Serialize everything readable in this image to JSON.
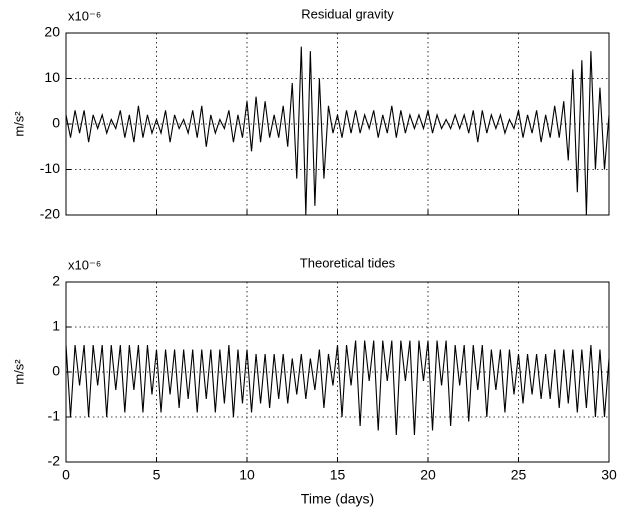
{
  "chart_data": [
    {
      "type": "line",
      "title": "Residual gravity",
      "multiplier": "x10⁻⁶",
      "y_label": "m/s²",
      "xlim": [
        0,
        30
      ],
      "xticks": [
        0,
        5,
        10,
        15,
        20,
        25,
        30
      ],
      "show_xtick_labels": false,
      "ylim": [
        -20,
        20
      ],
      "yticks": [
        -20,
        -10,
        0,
        10,
        20
      ],
      "grid": true,
      "color": "#000000",
      "x": [
        0,
        0.25,
        0.5,
        0.75,
        1,
        1.25,
        1.5,
        1.75,
        2,
        2.25,
        2.5,
        2.75,
        3,
        3.25,
        3.5,
        3.75,
        4,
        4.25,
        4.5,
        4.75,
        5,
        5.25,
        5.5,
        5.75,
        6,
        6.25,
        6.5,
        6.75,
        7,
        7.25,
        7.5,
        7.75,
        8,
        8.25,
        8.5,
        8.75,
        9,
        9.25,
        9.5,
        9.75,
        10,
        10.25,
        10.5,
        10.75,
        11,
        11.25,
        11.5,
        11.75,
        12,
        12.25,
        12.5,
        12.75,
        13,
        13.25,
        13.5,
        13.75,
        14,
        14.25,
        14.5,
        14.75,
        15,
        15.25,
        15.5,
        15.75,
        16,
        16.25,
        16.5,
        16.75,
        17,
        17.25,
        17.5,
        17.75,
        18,
        18.25,
        18.5,
        18.75,
        19,
        19.25,
        19.5,
        19.75,
        20,
        20.25,
        20.5,
        20.75,
        21,
        21.25,
        21.5,
        21.75,
        22,
        22.25,
        22.5,
        22.75,
        23,
        23.25,
        23.5,
        23.75,
        24,
        24.25,
        24.5,
        24.75,
        25,
        25.25,
        25.5,
        25.75,
        26,
        26.25,
        26.5,
        26.75,
        27,
        27.25,
        27.5,
        27.75,
        28,
        28.25,
        28.5,
        28.75,
        29,
        29.25,
        29.5,
        29.75,
        30
      ],
      "values": [
        2,
        -3,
        3,
        -2,
        3,
        -4,
        2,
        -1,
        2,
        -2,
        1,
        -1,
        3,
        -3,
        2,
        -4,
        4,
        -3,
        2,
        -2,
        1,
        -2,
        3,
        -4,
        2,
        -1,
        1,
        -2,
        3,
        -3,
        4,
        -5,
        2,
        -2,
        1,
        -1,
        3,
        -4,
        2,
        -3,
        5,
        -6,
        6,
        -4,
        5,
        -3,
        2,
        -3,
        4,
        -5,
        9,
        -12,
        17,
        -20,
        16,
        -18,
        10,
        -12,
        4,
        -2,
        2,
        -3,
        3,
        -2,
        3,
        -2,
        2,
        -1,
        3,
        -3,
        2,
        -2,
        4,
        -3,
        3,
        -2,
        2,
        -1,
        2,
        -1,
        3,
        -2,
        2,
        -1,
        1,
        -1,
        2,
        -1,
        2,
        -2,
        3,
        -4,
        3,
        -2,
        2,
        -1,
        2,
        -2,
        1,
        -1,
        3,
        -3,
        2,
        -2,
        3,
        -4,
        2,
        -3,
        4,
        -3,
        5,
        -8,
        12,
        -15,
        14,
        -20,
        16,
        -10,
        8,
        -10,
        2
      ]
    },
    {
      "type": "line",
      "title": "Theoretical tides",
      "multiplier": "x10⁻⁶",
      "y_label": "m/s²",
      "x_label": "Time (days)",
      "xlim": [
        0,
        30
      ],
      "xticks": [
        0,
        5,
        10,
        15,
        20,
        25,
        30
      ],
      "show_xtick_labels": true,
      "ylim": [
        -2,
        2
      ],
      "yticks": [
        -2,
        -1,
        0,
        1,
        2
      ],
      "grid": true,
      "color": "#000000",
      "x": [
        0,
        0.25,
        0.5,
        0.75,
        1,
        1.25,
        1.5,
        1.75,
        2,
        2.25,
        2.5,
        2.75,
        3,
        3.25,
        3.5,
        3.75,
        4,
        4.25,
        4.5,
        4.75,
        5,
        5.25,
        5.5,
        5.75,
        6,
        6.25,
        6.5,
        6.75,
        7,
        7.25,
        7.5,
        7.75,
        8,
        8.25,
        8.5,
        8.75,
        9,
        9.25,
        9.5,
        9.75,
        10,
        10.25,
        10.5,
        10.75,
        11,
        11.25,
        11.5,
        11.75,
        12,
        12.25,
        12.5,
        12.75,
        13,
        13.25,
        13.5,
        13.75,
        14,
        14.25,
        14.5,
        14.75,
        15,
        15.25,
        15.5,
        15.75,
        16,
        16.25,
        16.5,
        16.75,
        17,
        17.25,
        17.5,
        17.75,
        18,
        18.25,
        18.5,
        18.75,
        19,
        19.25,
        19.5,
        19.75,
        20,
        20.25,
        20.5,
        20.75,
        21,
        21.25,
        21.5,
        21.75,
        22,
        22.25,
        22.5,
        22.75,
        23,
        23.25,
        23.5,
        23.75,
        24,
        24.25,
        24.5,
        24.75,
        25,
        25.25,
        25.5,
        25.75,
        26,
        26.25,
        26.5,
        26.75,
        27,
        27.25,
        27.5,
        27.75,
        28,
        28.25,
        28.5,
        28.75,
        29,
        29.25,
        29.5,
        29.75,
        30
      ],
      "values": [
        0.6,
        -1.0,
        0.6,
        -0.3,
        0.6,
        -1.0,
        0.6,
        -0.3,
        0.6,
        -1.0,
        0.6,
        -0.4,
        0.6,
        -0.9,
        0.6,
        -0.4,
        0.6,
        -0.9,
        0.6,
        -0.5,
        0.5,
        -0.9,
        0.5,
        -0.5,
        0.5,
        -0.8,
        0.5,
        -0.6,
        0.5,
        -0.9,
        0.5,
        -0.6,
        0.5,
        -0.9,
        0.5,
        -0.7,
        0.6,
        -1.0,
        0.5,
        -0.7,
        0.5,
        -0.9,
        0.4,
        -0.7,
        0.4,
        -0.8,
        0.4,
        -0.6,
        0.4,
        -0.7,
        0.3,
        -0.5,
        0.4,
        -0.6,
        0.3,
        -0.4,
        0.5,
        -0.8,
        0.4,
        -0.3,
        0.6,
        -1.0,
        0.6,
        -0.3,
        0.7,
        -1.2,
        0.7,
        -0.2,
        0.7,
        -1.3,
        0.7,
        -0.2,
        0.7,
        -1.4,
        0.7,
        -0.2,
        0.7,
        -1.4,
        0.7,
        -0.2,
        0.7,
        -1.3,
        0.7,
        -0.3,
        0.7,
        -1.2,
        0.6,
        -0.3,
        0.6,
        -1.1,
        0.6,
        -0.4,
        0.6,
        -1.0,
        0.5,
        -0.4,
        0.5,
        -0.9,
        0.5,
        -0.5,
        0.4,
        -0.7,
        0.4,
        -0.5,
        0.4,
        -0.6,
        0.4,
        -0.6,
        0.5,
        -0.8,
        0.5,
        -0.7,
        0.5,
        -0.9,
        0.5,
        -0.8,
        0.6,
        -1.0,
        0.5,
        -1.0,
        0.3
      ]
    }
  ]
}
